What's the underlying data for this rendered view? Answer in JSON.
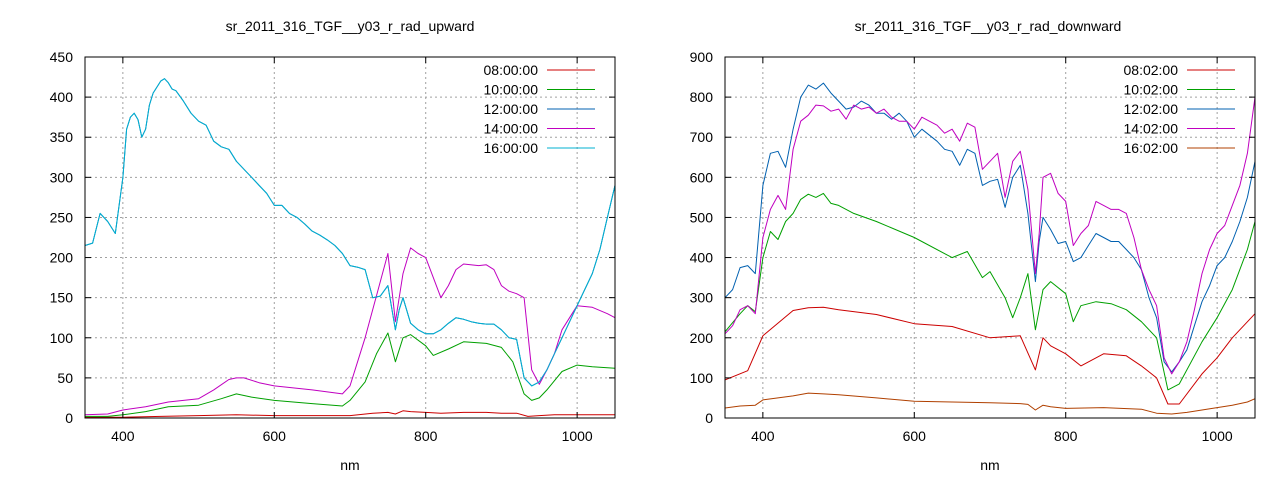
{
  "chart_data": [
    {
      "type": "line",
      "title": "sr_2011_316_TGF__y03_r_rad_upward",
      "xlabel": "nm",
      "ylabel": "",
      "xlim": [
        350,
        1050
      ],
      "ylim": [
        0,
        450
      ],
      "xticks": [
        400,
        600,
        800,
        1000
      ],
      "yticks": [
        0,
        50,
        100,
        150,
        200,
        250,
        300,
        350,
        400,
        450
      ],
      "grid": true,
      "legend_position": "top-right",
      "series": [
        {
          "name": "08:00:00",
          "color": "#cc0000",
          "x": [
            350,
            400,
            450,
            500,
            550,
            600,
            650,
            700,
            730,
            750,
            760,
            770,
            780,
            800,
            820,
            850,
            880,
            900,
            920,
            935,
            950,
            970,
            1000,
            1050
          ],
          "y": [
            1,
            1,
            2,
            3,
            4,
            3,
            3,
            3,
            6,
            7,
            5,
            9,
            8,
            7,
            6,
            7,
            7,
            6,
            6,
            2,
            3,
            4,
            4,
            4
          ]
        },
        {
          "name": "10:00:00",
          "color": "#00a000",
          "x": [
            350,
            380,
            400,
            430,
            460,
            500,
            530,
            550,
            570,
            600,
            650,
            690,
            700,
            720,
            735,
            750,
            760,
            770,
            780,
            800,
            810,
            830,
            850,
            880,
            900,
            915,
            930,
            940,
            950,
            960,
            980,
            1000,
            1020,
            1050
          ],
          "y": [
            2,
            2,
            4,
            8,
            14,
            16,
            24,
            30,
            26,
            22,
            18,
            15,
            22,
            45,
            80,
            106,
            70,
            100,
            104,
            90,
            78,
            86,
            95,
            93,
            88,
            70,
            30,
            22,
            25,
            35,
            58,
            66,
            64,
            62
          ]
        },
        {
          "name": "12:00:00",
          "color": "#0060b0",
          "x": [
            350,
            360,
            370,
            380,
            390,
            400,
            405,
            410,
            415,
            420,
            425,
            430,
            435,
            440,
            450,
            455,
            460,
            465,
            470,
            480,
            490,
            500,
            510,
            520,
            530,
            540,
            550,
            560,
            570,
            580,
            590,
            600,
            610,
            620,
            630,
            640,
            650,
            660,
            670,
            680,
            690,
            700,
            710,
            720,
            730,
            740,
            750,
            760,
            765,
            770,
            780,
            790,
            800,
            810,
            820,
            830,
            840,
            850,
            860,
            870,
            880,
            890,
            900,
            910,
            920,
            930,
            940,
            950,
            960,
            970,
            980,
            990,
            1000,
            1010,
            1020,
            1030,
            1040,
            1050
          ],
          "y": [
            215,
            218,
            255,
            245,
            230,
            300,
            360,
            375,
            380,
            372,
            350,
            360,
            390,
            405,
            420,
            423,
            418,
            410,
            408,
            395,
            380,
            370,
            365,
            345,
            338,
            335,
            320,
            310,
            300,
            290,
            280,
            265,
            265,
            255,
            250,
            242,
            233,
            228,
            222,
            215,
            205,
            190,
            188,
            185,
            150,
            152,
            165,
            110,
            135,
            150,
            118,
            110,
            105,
            105,
            110,
            118,
            125,
            123,
            120,
            118,
            117,
            117,
            110,
            100,
            98,
            50,
            40,
            45,
            60,
            80,
            100,
            120,
            140,
            160,
            180,
            210,
            250,
            290
          ]
        },
        {
          "name": "14:00:00",
          "color": "#c000c0",
          "x": [
            350,
            380,
            400,
            430,
            460,
            500,
            520,
            540,
            550,
            560,
            580,
            600,
            650,
            690,
            700,
            720,
            740,
            750,
            760,
            770,
            780,
            790,
            800,
            810,
            820,
            830,
            840,
            850,
            870,
            880,
            890,
            900,
            910,
            920,
            930,
            940,
            950,
            960,
            970,
            980,
            1000,
            1020,
            1040,
            1050
          ],
          "y": [
            4,
            5,
            10,
            14,
            20,
            24,
            35,
            48,
            50,
            50,
            44,
            40,
            35,
            30,
            40,
            100,
            170,
            205,
            120,
            180,
            212,
            205,
            200,
            175,
            150,
            165,
            185,
            192,
            190,
            191,
            185,
            165,
            158,
            155,
            150,
            60,
            42,
            60,
            80,
            110,
            140,
            138,
            130,
            125
          ]
        },
        {
          "name": "16:00:00",
          "color": "#00b0d0",
          "x": [
            350,
            360,
            370,
            380,
            390,
            400,
            405,
            410,
            415,
            420,
            425,
            430,
            435,
            440,
            450,
            455,
            460,
            465,
            470,
            480,
            490,
            500,
            510,
            520,
            530,
            540,
            550,
            560,
            570,
            580,
            590,
            600,
            610,
            620,
            630,
            640,
            650,
            660,
            670,
            680,
            690,
            700,
            710,
            720,
            730,
            740,
            750,
            760,
            765,
            770,
            780,
            790,
            800,
            810,
            820,
            830,
            840,
            850,
            860,
            870,
            880,
            890,
            900,
            910,
            920,
            930,
            940,
            950,
            960,
            970,
            980,
            990,
            1000,
            1010,
            1020,
            1030,
            1040,
            1050
          ],
          "y": [
            215,
            218,
            255,
            245,
            230,
            300,
            360,
            375,
            380,
            372,
            350,
            360,
            390,
            405,
            420,
            423,
            418,
            410,
            408,
            395,
            380,
            370,
            365,
            345,
            338,
            335,
            320,
            310,
            300,
            290,
            280,
            265,
            265,
            255,
            250,
            242,
            233,
            228,
            222,
            215,
            205,
            190,
            188,
            185,
            150,
            152,
            165,
            110,
            135,
            150,
            118,
            110,
            105,
            105,
            110,
            118,
            125,
            123,
            120,
            118,
            117,
            117,
            110,
            100,
            98,
            50,
            40,
            45,
            60,
            80,
            100,
            120,
            140,
            160,
            180,
            210,
            250,
            290
          ]
        }
      ]
    },
    {
      "type": "line",
      "title": "sr_2011_316_TGF__y03_r_rad_downward",
      "xlabel": "nm",
      "ylabel": "",
      "xlim": [
        350,
        1050
      ],
      "ylim": [
        0,
        900
      ],
      "xticks": [
        400,
        600,
        800,
        1000
      ],
      "yticks": [
        0,
        100,
        200,
        300,
        400,
        500,
        600,
        700,
        800,
        900
      ],
      "grid": true,
      "legend_position": "top-right",
      "series": [
        {
          "name": "08:02:00",
          "color": "#cc0000",
          "x": [
            350,
            380,
            400,
            440,
            460,
            480,
            500,
            550,
            600,
            650,
            700,
            740,
            760,
            770,
            780,
            800,
            820,
            850,
            880,
            900,
            920,
            935,
            950,
            980,
            1000,
            1020,
            1050
          ],
          "y": [
            95,
            118,
            205,
            268,
            275,
            276,
            270,
            258,
            235,
            228,
            200,
            205,
            120,
            200,
            180,
            160,
            130,
            160,
            155,
            130,
            100,
            35,
            35,
            110,
            150,
            200,
            260
          ]
        },
        {
          "name": "10:02:00",
          "color": "#00a000",
          "x": [
            350,
            370,
            380,
            390,
            400,
            410,
            420,
            430,
            440,
            450,
            460,
            470,
            480,
            490,
            500,
            520,
            550,
            600,
            650,
            670,
            690,
            700,
            720,
            730,
            740,
            750,
            760,
            770,
            780,
            800,
            810,
            820,
            840,
            860,
            880,
            900,
            920,
            935,
            950,
            980,
            1000,
            1020,
            1040,
            1050
          ],
          "y": [
            215,
            260,
            280,
            265,
            400,
            465,
            445,
            490,
            510,
            545,
            558,
            550,
            560,
            535,
            530,
            510,
            490,
            450,
            400,
            415,
            350,
            365,
            300,
            250,
            300,
            360,
            220,
            320,
            340,
            310,
            240,
            280,
            290,
            285,
            270,
            240,
            200,
            70,
            85,
            190,
            250,
            320,
            420,
            490
          ]
        },
        {
          "name": "12:02:00",
          "color": "#0060b0",
          "x": [
            350,
            360,
            370,
            380,
            390,
            400,
            410,
            420,
            430,
            440,
            450,
            460,
            470,
            480,
            490,
            500,
            510,
            520,
            530,
            540,
            550,
            560,
            570,
            580,
            590,
            600,
            610,
            620,
            630,
            640,
            650,
            660,
            670,
            680,
            690,
            700,
            710,
            720,
            730,
            740,
            750,
            760,
            765,
            770,
            780,
            790,
            800,
            810,
            820,
            830,
            840,
            850,
            860,
            870,
            880,
            890,
            900,
            910,
            920,
            930,
            940,
            950,
            960,
            970,
            980,
            990,
            1000,
            1010,
            1020,
            1030,
            1040,
            1050
          ],
          "y": [
            300,
            320,
            375,
            380,
            360,
            580,
            660,
            665,
            625,
            720,
            800,
            830,
            820,
            835,
            810,
            790,
            770,
            775,
            790,
            780,
            760,
            760,
            745,
            760,
            740,
            700,
            720,
            705,
            690,
            670,
            665,
            630,
            670,
            660,
            580,
            590,
            595,
            525,
            600,
            630,
            510,
            340,
            440,
            500,
            470,
            435,
            440,
            390,
            400,
            430,
            460,
            450,
            440,
            440,
            420,
            400,
            370,
            300,
            250,
            140,
            115,
            140,
            170,
            230,
            290,
            330,
            380,
            400,
            440,
            490,
            550,
            640
          ]
        },
        {
          "name": "14:02:00",
          "color": "#c000c0",
          "x": [
            350,
            360,
            370,
            380,
            390,
            400,
            410,
            420,
            430,
            440,
            450,
            460,
            470,
            480,
            490,
            500,
            510,
            520,
            530,
            540,
            550,
            560,
            570,
            580,
            590,
            600,
            610,
            620,
            630,
            640,
            650,
            660,
            670,
            680,
            690,
            700,
            710,
            720,
            730,
            740,
            750,
            760,
            765,
            770,
            780,
            790,
            800,
            810,
            820,
            830,
            840,
            850,
            860,
            870,
            880,
            890,
            900,
            910,
            920,
            930,
            940,
            950,
            960,
            970,
            980,
            990,
            1000,
            1010,
            1020,
            1030,
            1040,
            1050
          ],
          "y": [
            210,
            230,
            270,
            280,
            260,
            450,
            520,
            555,
            520,
            670,
            740,
            755,
            780,
            778,
            765,
            770,
            745,
            780,
            770,
            775,
            760,
            770,
            750,
            740,
            740,
            720,
            750,
            740,
            730,
            710,
            720,
            690,
            735,
            725,
            620,
            640,
            660,
            550,
            640,
            665,
            570,
            360,
            460,
            600,
            610,
            560,
            540,
            430,
            460,
            480,
            540,
            530,
            520,
            520,
            510,
            450,
            370,
            320,
            280,
            150,
            110,
            140,
            190,
            270,
            360,
            420,
            460,
            480,
            530,
            580,
            660,
            800
          ]
        },
        {
          "name": "16:02:00",
          "color": "#b04000",
          "x": [
            350,
            370,
            390,
            400,
            420,
            440,
            460,
            480,
            500,
            550,
            600,
            650,
            700,
            740,
            750,
            760,
            770,
            780,
            800,
            850,
            900,
            920,
            940,
            960,
            980,
            1000,
            1020,
            1040,
            1050
          ],
          "y": [
            25,
            30,
            32,
            45,
            50,
            55,
            62,
            60,
            58,
            50,
            42,
            40,
            38,
            36,
            34,
            20,
            32,
            28,
            24,
            26,
            22,
            12,
            10,
            14,
            20,
            26,
            32,
            40,
            48
          ]
        }
      ]
    }
  ]
}
